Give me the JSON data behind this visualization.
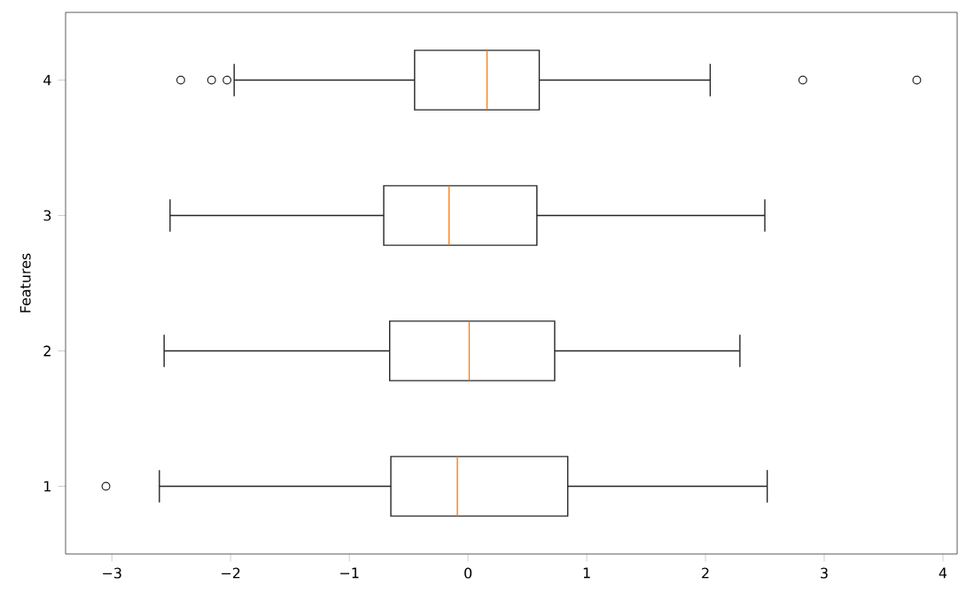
{
  "chart_data": {
    "type": "box",
    "orientation": "horizontal",
    "ylabel": "Features",
    "categories": [
      "4",
      "3",
      "2",
      "1"
    ],
    "boxes": [
      {
        "low": -1.97,
        "q1": -0.45,
        "median": 0.16,
        "q3": 0.6,
        "high": 2.04,
        "outliers": [
          -2.42,
          -2.16,
          -2.03,
          2.82,
          3.78
        ]
      },
      {
        "low": -2.51,
        "q1": -0.71,
        "median": -0.16,
        "q3": 0.58,
        "high": 2.5
      },
      {
        "low": -2.56,
        "q1": -0.66,
        "median": 0.01,
        "q3": 0.73,
        "high": 2.29
      },
      {
        "low": -2.6,
        "q1": -0.65,
        "median": -0.09,
        "q3": 0.84,
        "high": 2.52,
        "outliers": [
          -3.05
        ]
      }
    ],
    "xlim": [
      -3.39,
      4.12
    ],
    "xticks": [
      {
        "value": -3,
        "label": "−3"
      },
      {
        "value": -2,
        "label": "−2"
      },
      {
        "value": -1,
        "label": "−1"
      },
      0,
      1,
      2,
      3,
      4
    ],
    "grid": false
  }
}
